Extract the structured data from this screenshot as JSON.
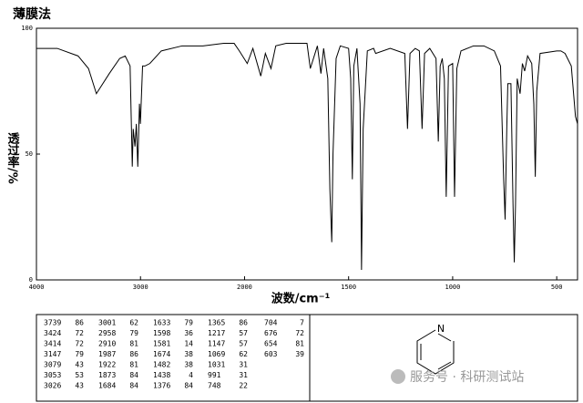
{
  "chart_data": {
    "type": "line",
    "title": "薄膜法",
    "xlabel": "波数/cm⁻¹",
    "ylabel": "透过率/%",
    "color": "#000000",
    "xlim": [
      4000,
      400
    ],
    "x_break": 2000,
    "ylim": [
      0,
      100
    ],
    "xticks": [
      4000,
      3000,
      2000,
      1500,
      1000,
      500
    ],
    "yticks": [
      100,
      50,
      0
    ],
    "x": [
      4000,
      3800,
      3600,
      3500,
      3424,
      3300,
      3200,
      3147,
      3100,
      3079,
      3070,
      3053,
      3040,
      3026,
      3010,
      3001,
      2980,
      2958,
      2910,
      2800,
      2600,
      2400,
      2200,
      2100,
      2050,
      1987,
      1960,
      1922,
      1900,
      1873,
      1850,
      1800,
      1700,
      1684,
      1650,
      1633,
      1620,
      1600,
      1590,
      1581,
      1575,
      1560,
      1540,
      1500,
      1490,
      1482,
      1475,
      1460,
      1445,
      1438,
      1430,
      1410,
      1380,
      1370,
      1300,
      1230,
      1217,
      1205,
      1180,
      1160,
      1147,
      1135,
      1110,
      1080,
      1069,
      1060,
      1050,
      1040,
      1031,
      1020,
      1000,
      991,
      980,
      960,
      900,
      850,
      800,
      770,
      755,
      748,
      740,
      735,
      720,
      710,
      704,
      698,
      690,
      676,
      665,
      654,
      640,
      620,
      610,
      603,
      596,
      580,
      500,
      480,
      460,
      430,
      410,
      400
    ],
    "values": [
      92,
      92,
      89,
      84,
      74,
      82,
      88,
      89,
      85,
      45,
      60,
      53,
      62,
      45,
      70,
      62,
      85,
      85,
      86,
      91,
      93,
      93,
      94,
      94,
      91,
      86,
      92,
      81,
      90,
      84,
      93,
      94,
      94,
      84,
      93,
      82,
      92,
      80,
      36,
      15,
      50,
      88,
      93,
      92,
      80,
      40,
      85,
      92,
      70,
      4,
      60,
      91,
      92,
      90,
      92,
      90,
      60,
      90,
      92,
      91,
      60,
      90,
      92,
      88,
      55,
      85,
      88,
      80,
      33,
      85,
      86,
      33,
      84,
      91,
      93,
      93,
      91,
      85,
      40,
      24,
      60,
      78,
      78,
      30,
      7,
      30,
      80,
      74,
      86,
      83,
      89,
      86,
      70,
      41,
      75,
      90,
      91,
      91,
      90,
      85,
      65,
      62
    ]
  },
  "peak_table": {
    "columns": [
      [
        [
          3739,
          86
        ],
        [
          3424,
          72
        ],
        [
          3414,
          72
        ],
        [
          3147,
          79
        ],
        [
          3079,
          43
        ],
        [
          3053,
          53
        ],
        [
          3026,
          43
        ]
      ],
      [
        [
          3001,
          62
        ],
        [
          2958,
          79
        ],
        [
          2910,
          81
        ],
        [
          1987,
          86
        ],
        [
          1922,
          81
        ],
        [
          1873,
          84
        ],
        [
          1684,
          84
        ]
      ],
      [
        [
          1633,
          79
        ],
        [
          1598,
          36
        ],
        [
          1581,
          14
        ],
        [
          1674,
          38
        ],
        [
          1482,
          38
        ],
        [
          1438,
          4
        ],
        [
          1376,
          84
        ]
      ],
      [
        [
          1365,
          86
        ],
        [
          1217,
          57
        ],
        [
          1147,
          57
        ],
        [
          1069,
          62
        ],
        [
          1031,
          31
        ],
        [
          991,
          31
        ],
        [
          748,
          22
        ]
      ],
      [
        [
          704,
          7
        ],
        [
          676,
          72
        ],
        [
          654,
          81
        ],
        [
          603,
          39
        ]
      ]
    ]
  },
  "structure": {
    "atom": "N"
  },
  "watermark": "服务号 · 科研测试站"
}
